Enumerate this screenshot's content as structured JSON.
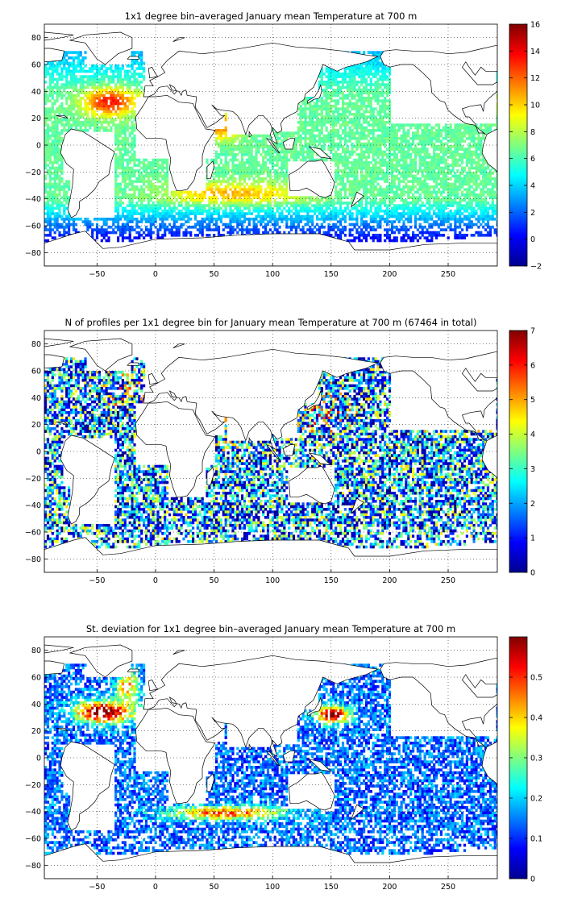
{
  "panels": [
    {
      "id": "temperature",
      "title": "1x1 degree bin–averaged January mean Temperature at 700 m",
      "colorbar": {
        "min": -2,
        "max": 16,
        "ticks": [
          "16",
          "14",
          "12",
          "10",
          "8",
          "6",
          "4",
          "2",
          "0",
          "−2"
        ]
      },
      "field": "temperature"
    },
    {
      "id": "profile-count",
      "title": "N of profiles per 1x1 degree bin for January mean Temperature at 700 m (67464 in total)",
      "colorbar": {
        "min": 0,
        "max": 7,
        "ticks": [
          "7",
          "6",
          "5",
          "4",
          "3",
          "2",
          "1",
          "0"
        ]
      },
      "field": "count"
    },
    {
      "id": "std-deviation",
      "title": "St. deviation for 1x1 degree bin–averaged January mean Temperature at 700 m",
      "colorbar": {
        "min": 0,
        "max": 0.6,
        "ticks": [
          "0.5",
          "0.4",
          "0.3",
          "0.2",
          "0.1",
          "0"
        ]
      },
      "field": "std"
    }
  ],
  "axes": {
    "x_ticks": [
      "−50",
      "0",
      "50",
      "100",
      "150",
      "200",
      "250"
    ],
    "y_ticks": [
      "80",
      "60",
      "40",
      "20",
      "0",
      "−20",
      "−40",
      "−60",
      "−80"
    ],
    "x_range": [
      -95,
      292
    ],
    "y_range": [
      -90,
      90
    ],
    "grid": "dotted"
  },
  "colormap": "jet"
}
